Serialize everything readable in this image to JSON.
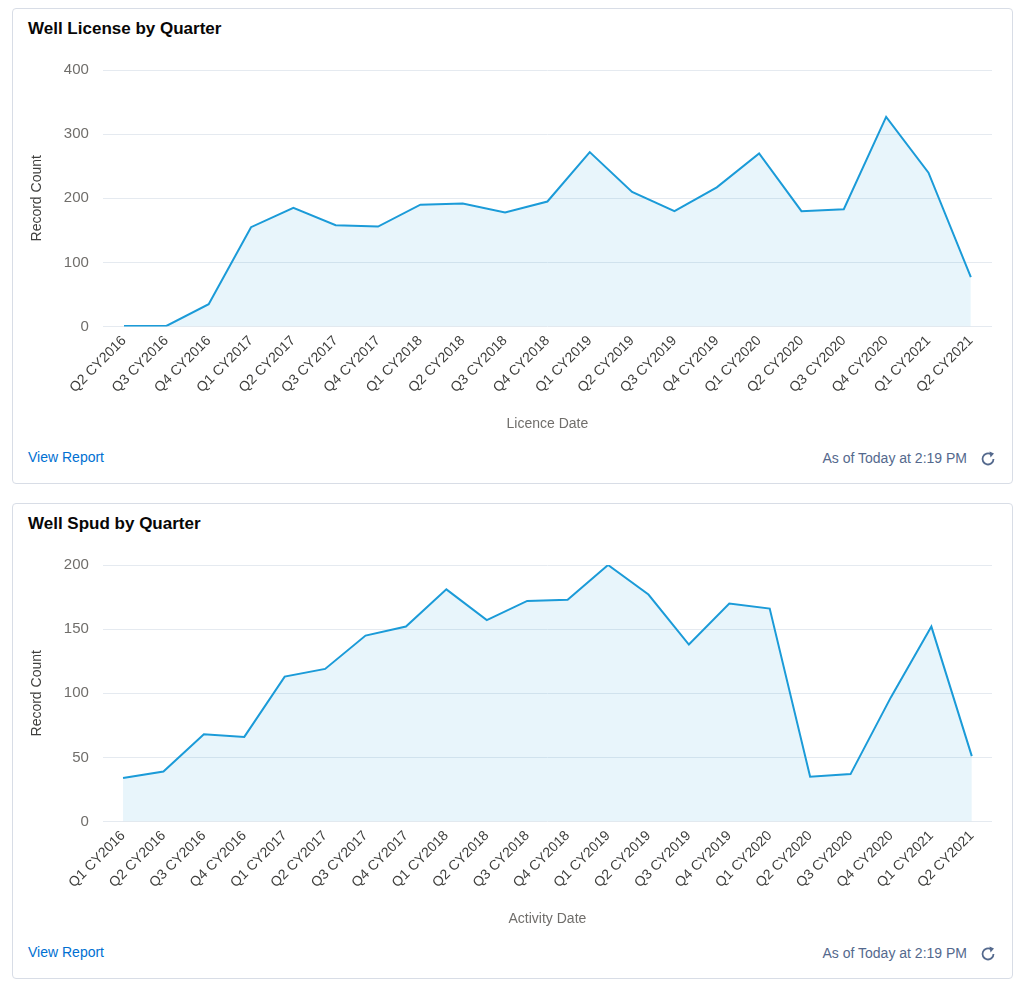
{
  "chart_data": [
    {
      "type": "area",
      "title": "Well License by Quarter",
      "x_label": "Licence Date",
      "y_label": "Record Count",
      "categories": [
        "Q2 CY2016",
        "Q3 CY2016",
        "Q4 CY2016",
        "Q1 CY2017",
        "Q2 CY2017",
        "Q3 CY2017",
        "Q4 CY2017",
        "Q1 CY2018",
        "Q2 CY2018",
        "Q3 CY2018",
        "Q4 CY2018",
        "Q1 CY2019",
        "Q2 CY2019",
        "Q3 CY2019",
        "Q4 CY2019",
        "Q1 CY2020",
        "Q2 CY2020",
        "Q3 CY2020",
        "Q4 CY2020",
        "Q1 CY2021",
        "Q2 CY2021"
      ],
      "values": [
        1,
        1,
        35,
        155,
        185,
        158,
        156,
        190,
        192,
        178,
        195,
        272,
        210,
        180,
        217,
        270,
        180,
        183,
        327,
        240,
        77
      ],
      "color": "#1b9bd8",
      "ylim": [
        0,
        400
      ],
      "yticks": [
        0,
        100,
        200,
        300,
        400
      ],
      "grid": true,
      "annotations": [
        "View Report",
        "As of Today at 2:19 PM"
      ]
    },
    {
      "type": "area",
      "title": "Well Spud by Quarter",
      "x_label": "Activity Date",
      "y_label": "Record Count",
      "categories": [
        "Q1 CY2016",
        "Q2 CY2016",
        "Q3 CY2016",
        "Q4 CY2016",
        "Q1 CY2017",
        "Q2 CY2017",
        "Q3 CY2017",
        "Q4 CY2017",
        "Q1 CY2018",
        "Q2 CY2018",
        "Q3 CY2018",
        "Q4 CY2018",
        "Q1 CY2019",
        "Q2 CY2019",
        "Q3 CY2019",
        "Q4 CY2019",
        "Q1 CY2020",
        "Q2 CY2020",
        "Q3 CY2020",
        "Q4 CY2020",
        "Q1 CY2021",
        "Q2 CY2021"
      ],
      "values": [
        34,
        39,
        68,
        66,
        113,
        119,
        145,
        152,
        181,
        157,
        172,
        173,
        200,
        177,
        138,
        170,
        166,
        35,
        37,
        97,
        152,
        51
      ],
      "color": "#1b9bd8",
      "ylim": [
        0,
        200
      ],
      "yticks": [
        0,
        50,
        100,
        150,
        200
      ],
      "grid": true,
      "annotations": [
        "View Report",
        "As of Today at 2:19 PM"
      ]
    }
  ]
}
